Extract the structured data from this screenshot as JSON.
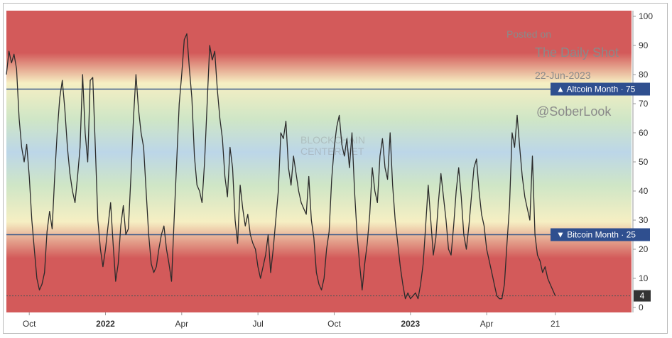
{
  "watermarks": {
    "posted_on": "Posted on",
    "publisher": "The Daily Shot",
    "date": "22-Jun-2023",
    "handle": "@SoberLook",
    "logo_line1": "BLOCKCHAIN",
    "logo_line2": "CENTER.NET"
  },
  "colors": {
    "line": "#2b2b2b",
    "threshold": "#3d5a8a",
    "badge": "#2f4f8f",
    "current_badge": "#333333",
    "band_red": "#d35a5a",
    "band_yellow": "#f6efc3",
    "band_green": "#cfe6c6",
    "band_blue": "#bcd6e8"
  },
  "chart_data": {
    "type": "line",
    "title": "",
    "xlabel": "",
    "ylabel": "",
    "ylim": [
      0,
      100
    ],
    "y_ticks": [
      0,
      10,
      20,
      30,
      40,
      50,
      60,
      70,
      80,
      90,
      100
    ],
    "x_ticks": [
      {
        "label": "Oct",
        "x": 9.2,
        "bold": false
      },
      {
        "label": "2022",
        "x": 12.2,
        "bold": true
      },
      {
        "label": "Apr",
        "x": 15.2,
        "bold": false
      },
      {
        "label": "Jul",
        "x": 18.2,
        "bold": false
      },
      {
        "label": "Oct",
        "x": 21.2,
        "bold": false
      },
      {
        "label": "2023",
        "x": 24.2,
        "bold": true
      },
      {
        "label": "Apr",
        "x": 27.2,
        "bold": false
      },
      {
        "label": "21",
        "x": 29.9,
        "bold": false
      }
    ],
    "xlim": [
      8.3,
      32.9
    ],
    "thresholds": [
      {
        "label": "Altcoin Month",
        "value": 75,
        "arrow": "▲"
      },
      {
        "label": "Bitcoin Month",
        "value": 25,
        "arrow": "▼"
      }
    ],
    "current_value": 4,
    "series": [
      {
        "x": [
          8.3,
          8.4,
          8.5,
          8.6,
          8.7,
          8.8,
          8.9,
          9.0,
          9.1,
          9.2,
          9.3,
          9.4,
          9.5,
          9.6,
          9.7,
          9.8,
          9.9,
          10.0,
          10.1,
          10.2,
          10.3,
          10.4,
          10.5,
          10.6,
          10.7,
          10.8,
          10.9,
          11.0,
          11.1,
          11.2,
          11.3,
          11.4,
          11.5,
          11.6,
          11.7,
          11.8,
          11.9,
          12.0,
          12.1,
          12.2,
          12.3,
          12.4,
          12.5,
          12.6,
          12.7,
          12.8,
          12.9,
          13.0,
          13.1,
          13.2,
          13.3,
          13.4,
          13.5,
          13.6,
          13.7,
          13.8,
          13.9,
          14.0,
          14.1,
          14.2,
          14.3,
          14.4,
          14.5,
          14.6,
          14.7,
          14.8,
          14.9,
          15.0,
          15.1,
          15.2,
          15.3,
          15.4,
          15.5,
          15.6,
          15.7,
          15.8,
          15.9,
          16.0,
          16.1,
          16.2,
          16.3,
          16.4,
          16.5,
          16.6,
          16.7,
          16.8,
          16.9,
          17.0,
          17.1,
          17.2,
          17.3,
          17.4,
          17.5,
          17.6,
          17.7,
          17.8,
          17.9,
          18.0,
          18.1,
          18.2,
          18.3,
          18.4,
          18.5,
          18.6,
          18.7,
          18.8,
          18.9,
          19.0,
          19.1,
          19.2,
          19.3,
          19.4,
          19.5,
          19.6,
          19.7,
          19.8,
          19.9,
          20.0,
          20.1,
          20.2,
          20.3,
          20.4,
          20.5,
          20.6,
          20.7,
          20.8,
          20.9,
          21.0,
          21.1,
          21.2,
          21.3,
          21.4,
          21.5,
          21.6,
          21.7,
          21.8,
          21.9,
          22.0,
          22.1,
          22.2,
          22.3,
          22.4,
          22.5,
          22.6,
          22.7,
          22.8,
          22.9,
          23.0,
          23.1,
          23.2,
          23.3,
          23.4,
          23.5,
          23.6,
          23.7,
          23.8,
          23.9,
          24.0,
          24.1,
          24.2,
          24.3,
          24.4,
          24.5,
          24.6,
          24.7,
          24.8,
          24.9,
          25.0,
          25.1,
          25.2,
          25.3,
          25.4,
          25.5,
          25.6,
          25.7,
          25.8,
          25.9,
          26.0,
          26.1,
          26.2,
          26.3,
          26.4,
          26.5,
          26.6,
          26.7,
          26.8,
          26.9,
          27.0,
          27.1,
          27.2,
          27.3,
          27.4,
          27.5,
          27.6,
          27.7,
          27.8,
          27.9,
          28.0,
          28.1,
          28.2,
          28.3,
          28.4,
          28.5,
          28.6,
          28.7,
          28.8,
          28.9,
          29.0,
          29.1,
          29.2,
          29.3,
          29.4,
          29.5,
          29.6,
          29.7,
          29.8,
          29.9
        ],
        "values": [
          80,
          88,
          84,
          87,
          82,
          65,
          55,
          50,
          56,
          45,
          30,
          20,
          10,
          6,
          8,
          12,
          26,
          33,
          27,
          45,
          60,
          72,
          78,
          68,
          55,
          46,
          40,
          36,
          45,
          55,
          80,
          60,
          50,
          78,
          79,
          55,
          30,
          20,
          14,
          20,
          28,
          36,
          22,
          9,
          15,
          28,
          35,
          25,
          27,
          45,
          65,
          80,
          68,
          60,
          55,
          40,
          25,
          15,
          12,
          14,
          20,
          25,
          28,
          20,
          15,
          9,
          30,
          50,
          70,
          80,
          92,
          94,
          82,
          72,
          52,
          42,
          40,
          36,
          50,
          70,
          90,
          85,
          88,
          75,
          65,
          58,
          45,
          38,
          55,
          48,
          30,
          22,
          42,
          34,
          28,
          32,
          25,
          22,
          20,
          14,
          10,
          14,
          18,
          25,
          12,
          20,
          30,
          40,
          60,
          58,
          64,
          48,
          42,
          52,
          46,
          40,
          36,
          34,
          32,
          45,
          30,
          24,
          12,
          8,
          6,
          10,
          20,
          26,
          44,
          55,
          62,
          66,
          56,
          52,
          58,
          48,
          60,
          40,
          25,
          15,
          6,
          15,
          22,
          32,
          48,
          40,
          36,
          52,
          58,
          48,
          44,
          60,
          42,
          30,
          22,
          14,
          8,
          3,
          5,
          3,
          4,
          5,
          3,
          8,
          15,
          28,
          42,
          30,
          18,
          24,
          36,
          46,
          38,
          30,
          20,
          18,
          28,
          40,
          48,
          38,
          25,
          20,
          28,
          38,
          48,
          51,
          40,
          32,
          28,
          20,
          16,
          12,
          8,
          4,
          3,
          3,
          8,
          22,
          35,
          60,
          55,
          66,
          55,
          45,
          38,
          34,
          30,
          52,
          25,
          18,
          16,
          12,
          14,
          10,
          8,
          6,
          4
        ]
      }
    ]
  }
}
